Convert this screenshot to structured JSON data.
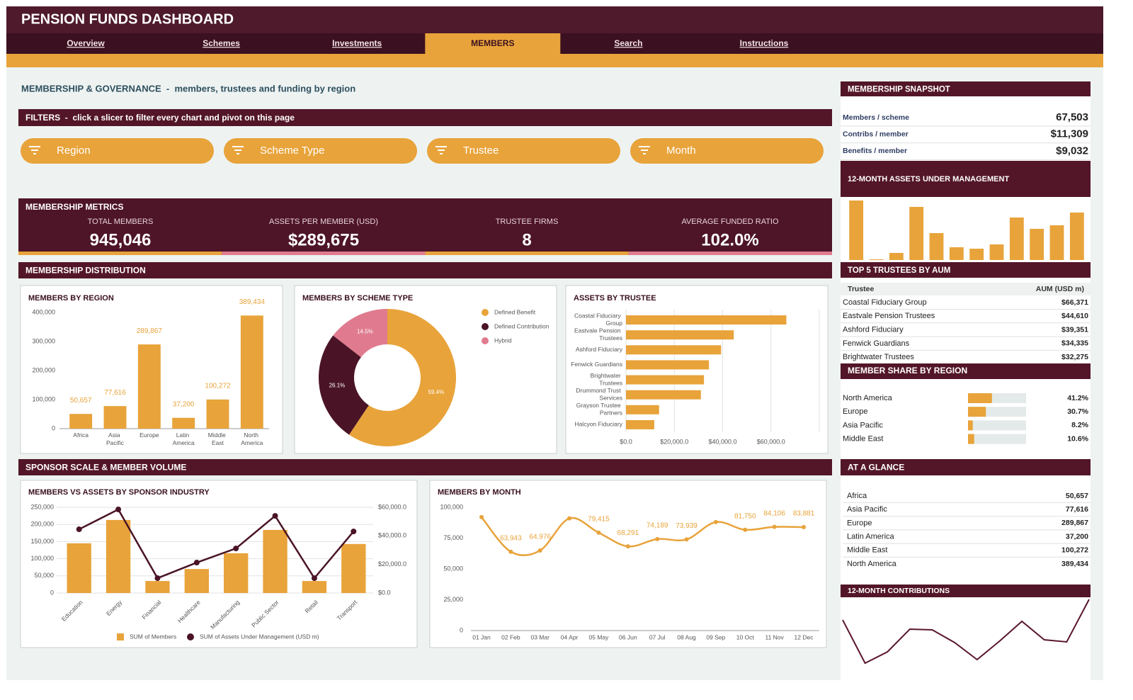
{
  "header": {
    "title": "PENSION FUNDS DASHBOARD"
  },
  "nav": {
    "items": [
      "Overview",
      "Schemes",
      "Investments",
      "MEMBERS",
      "Search",
      "Instructions"
    ],
    "active": 3
  },
  "heading": "MEMBERSHIP & GOVERNANCE  -  members, trustees and funding by region",
  "filters": {
    "title": "FILTERS  -  click a slicer to filter every chart and pivot on this page",
    "slicers": [
      "Region",
      "Scheme Type",
      "Trustee",
      "Month"
    ]
  },
  "metrics": {
    "title": "MEMBERSHIP METRICS",
    "items": [
      {
        "label": "TOTAL MEMBERS",
        "value": "945,046"
      },
      {
        "label": "ASSETS PER MEMBER (USD)",
        "value": "$289,675"
      },
      {
        "label": "TRUSTEE FIRMS",
        "value": "8"
      },
      {
        "label": "AVERAGE FUNDED RATIO",
        "value": "102.0%"
      }
    ]
  },
  "sections": [
    "MEMBERSHIP DISTRIBUTION",
    "SPONSOR SCALE & MEMBER VOLUME"
  ],
  "snapshot": {
    "title": "MEMBERSHIP SNAPSHOT",
    "rows": [
      [
        "Members / scheme",
        "67,503"
      ],
      [
        "Contribs / member",
        "$11,309"
      ],
      [
        "Benefits / member",
        "$9,032"
      ]
    ]
  },
  "top_trustees": {
    "title": "TOP 5 TRUSTEES BY AUM",
    "columns": [
      "Trustee",
      "AUM (USD m)"
    ],
    "rows": [
      [
        "Coastal Fiduciary Group",
        "$66,371"
      ],
      [
        "Eastvale Pension Trustees",
        "$44,610"
      ],
      [
        "Ashford Fiduciary",
        "$39,351"
      ],
      [
        "Fenwick Guardians",
        "$34,335"
      ],
      [
        "Brightwater Trustees",
        "$32,275"
      ]
    ]
  },
  "at_a_glance": {
    "title": "AT A GLANCE",
    "rows": [
      [
        "Africa",
        "50,657"
      ],
      [
        "Asia Pacific",
        "77,616"
      ],
      [
        "Europe",
        "289,867"
      ],
      [
        "Latin America",
        "37,200"
      ],
      [
        "Middle East",
        "100,272"
      ],
      [
        "North America",
        "389,434"
      ]
    ]
  },
  "chart_data": [
    {
      "type": "bar",
      "title": "MEMBERS BY REGION",
      "categories": [
        "Africa",
        "Asia Pacific",
        "Europe",
        "Latin America",
        "Middle East",
        "North America"
      ],
      "values": [
        50657,
        77616,
        289867,
        37200,
        100272,
        389434
      ],
      "value_labels": [
        "50,657",
        "77,616",
        "289,867",
        "37,200",
        "100,272",
        "389,434"
      ],
      "color": "#e8a33a",
      "ylim": [
        0,
        400000
      ],
      "yticks": [
        0,
        {
          "value": 100000,
          "label": "100,000"
        },
        {
          "value": 200000,
          "label": "200,000"
        },
        {
          "value": 300000,
          "label": "300,000"
        },
        {
          "value": 400000,
          "label": "400,000"
        }
      ]
    },
    {
      "type": "donut",
      "title": "MEMBERS BY SCHEME TYPE",
      "categories": [
        "Defined Benefit",
        "Defined Contribution",
        "Hybrid"
      ],
      "values": [
        59.4,
        26.1,
        14.5
      ],
      "value_labels": [
        "59.4%",
        "26.1%",
        "14.5%"
      ],
      "colors": [
        "#e8a33a",
        "#4a1426",
        "#e07b8f"
      ]
    },
    {
      "type": "hbar",
      "title": "ASSETS BY TRUSTEE",
      "categories": [
        "Coastal Fiduciary Group",
        "Eastvale Pension Trustees",
        "Ashford Fiduciary",
        "Fenwick Guardians",
        "Brightwater Trustees",
        "Drummond Trust Services",
        "Grayson Trustee Partners",
        "Halcyon Fiduciary"
      ],
      "values": [
        66371,
        44610,
        39351,
        34335,
        32275,
        31000,
        13700,
        11700
      ],
      "color": "#e8a33a",
      "xlim": [
        0,
        80000
      ],
      "xticks": [
        {
          "value": 0,
          "label": "$0.0"
        },
        {
          "value": 20000,
          "label": "$20,000.0"
        },
        {
          "value": 40000,
          "label": "$40,000.0"
        },
        {
          "value": 60000,
          "label": "$60,000.0"
        }
      ],
      "grid": true
    },
    {
      "type": "combo",
      "title": "MEMBERS VS ASSETS BY SPONSOR INDUSTRY",
      "categories": [
        "Education",
        "Energy",
        "Financial",
        "Healthcare",
        "Manufacturing",
        "Public Sector",
        "Retail",
        "Transport"
      ],
      "series": [
        {
          "name": "SUM of Members",
          "type": "bar",
          "color": "#e8a33a",
          "values": [
            145000,
            213000,
            35000,
            70000,
            116000,
            184000,
            35000,
            143000
          ]
        },
        {
          "name": "SUM of Assets Under Management (USD m)",
          "type": "line",
          "axis": "y2",
          "color": "#4a1426",
          "values": [
            44600,
            58500,
            10400,
            21300,
            31200,
            54000,
            10400,
            43100
          ]
        }
      ],
      "ylim": [
        0,
        250000
      ],
      "yticks": [
        0,
        {
          "value": 50000,
          "label": "50,000"
        },
        {
          "value": 100000,
          "label": "100,000"
        },
        {
          "value": 150000,
          "label": "150,000"
        },
        {
          "value": 200000,
          "label": "200,000"
        },
        {
          "value": 250000,
          "label": "250,000"
        }
      ],
      "y2lim": [
        0,
        60000
      ],
      "y2ticks": [
        {
          "value": 0,
          "label": "$0.0"
        },
        {
          "value": 20000,
          "label": "$20,000.0"
        },
        {
          "value": 40000,
          "label": "$40,000.0"
        },
        {
          "value": 60000,
          "label": "$60,000.0"
        }
      ],
      "grid": true
    },
    {
      "type": "line",
      "title": "MEMBERS BY MONTH",
      "categories": [
        "01 Jan",
        "02 Feb",
        "03 Mar",
        "04 Apr",
        "05 May",
        "06 Jun",
        "07 Jul",
        "08 Aug",
        "09 Sep",
        "10 Oct",
        "11 Nov",
        "12 Dec"
      ],
      "values": [
        92000,
        63943,
        64976,
        91000,
        79415,
        68291,
        74189,
        73939,
        88000,
        81750,
        84106,
        83881
      ],
      "value_labels": [
        null,
        "63,943",
        "64,976",
        null,
        "79,415",
        "68,291",
        "74,189",
        "73,939",
        null,
        "81,750",
        "84,106",
        "83,881"
      ],
      "color": "#e8a33a",
      "smooth": true,
      "markers": true,
      "ylim": [
        0,
        100000
      ],
      "yticks": [
        0,
        {
          "value": 25000,
          "label": "25,000"
        },
        {
          "value": 50000,
          "label": "50,000"
        },
        {
          "value": 75000,
          "label": "75,000"
        },
        {
          "value": 100000,
          "label": "100,000"
        }
      ]
    },
    {
      "type": "bar",
      "title": "12-MONTH ASSETS UNDER MANAGEMENT",
      "values": [
        84,
        1,
        10,
        75,
        38,
        18,
        16,
        22,
        60,
        44,
        49,
        67
      ],
      "color": "#e8a33a",
      "ylim": [
        0,
        90
      ]
    },
    {
      "type": "progress",
      "title": "MEMBER SHARE BY REGION",
      "categories": [
        "North America",
        "Europe",
        "Asia Pacific",
        "Middle East"
      ],
      "values": [
        41.2,
        30.7,
        8.2,
        10.6
      ],
      "value_labels": [
        "41.2%",
        "30.7%",
        "8.2%",
        "10.6%"
      ],
      "xlim": [
        0,
        100
      ],
      "color": "#e8a33a",
      "track_color": "#e4eae9"
    },
    {
      "type": "line",
      "title": "12-MONTH CONTRIBUTIONS",
      "values": [
        75,
        14,
        30,
        62,
        61,
        43,
        19,
        45,
        73,
        47,
        44,
        104
      ],
      "color": "#5a1630",
      "ylim": [
        0,
        110
      ]
    }
  ]
}
